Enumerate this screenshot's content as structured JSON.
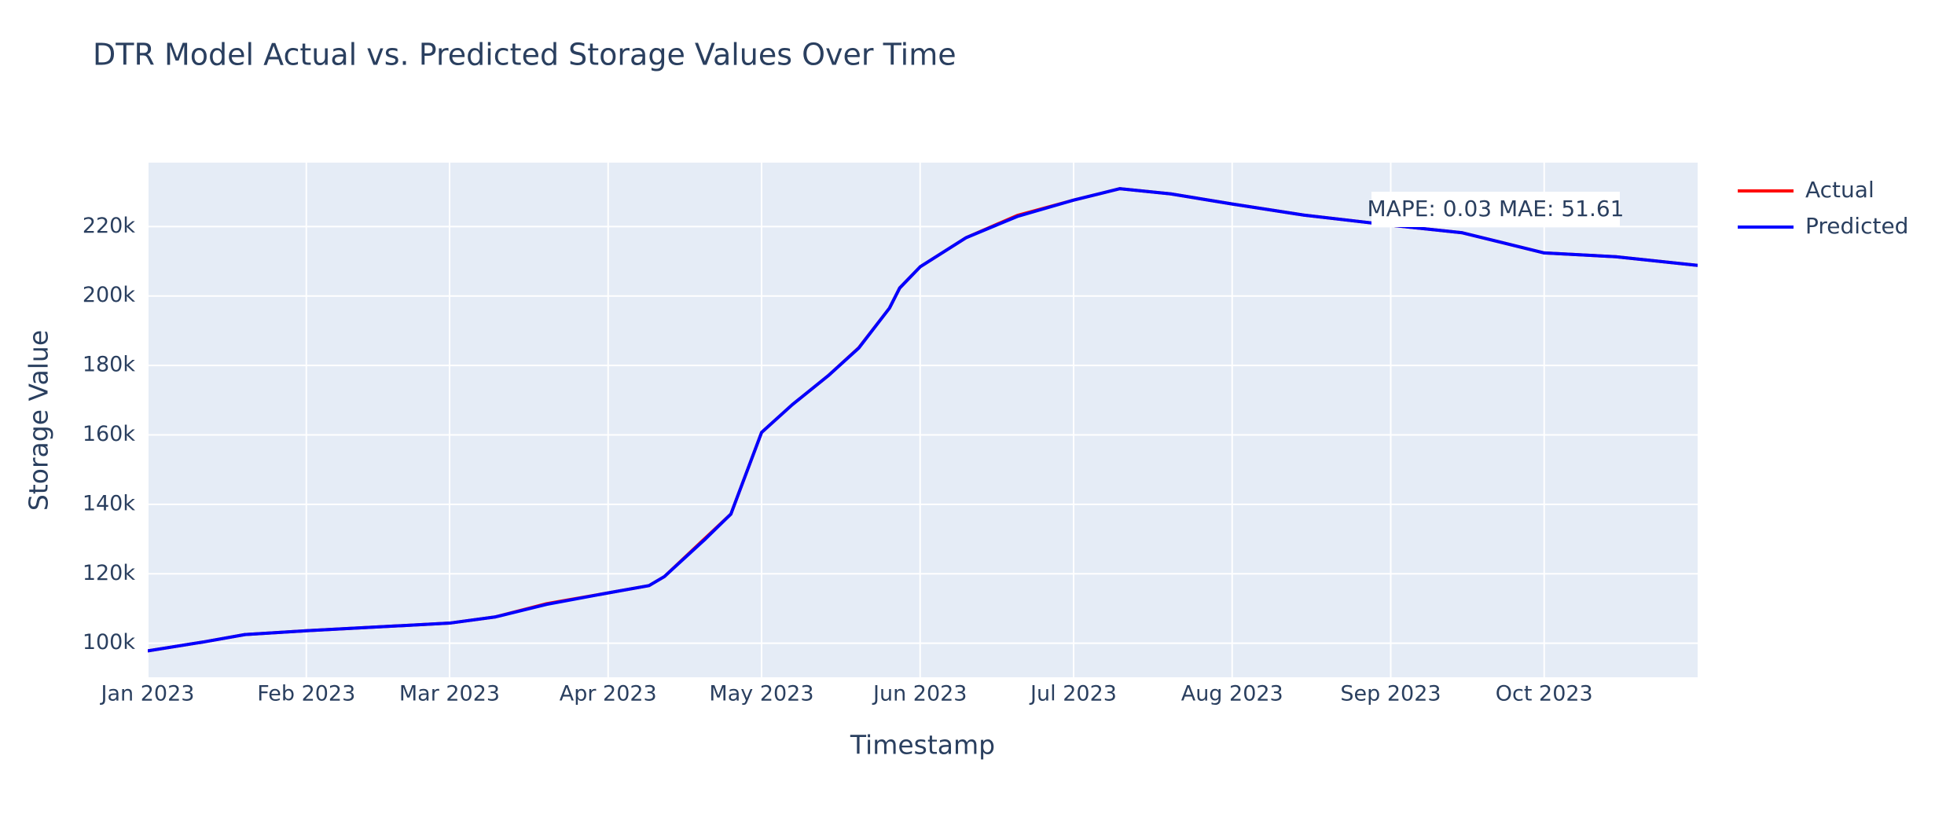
{
  "chart_data": {
    "type": "line",
    "title": "DTR Model Actual vs. Predicted Storage Values Over Time",
    "x_label": "Timestamp",
    "y_label": "Storage Value",
    "annotation": "MAPE: 0.03 MAE: 51.61",
    "x": [
      "2023-01-01",
      "2023-01-12",
      "2023-01-20",
      "2023-02-01",
      "2023-03-01",
      "2023-03-10",
      "2023-03-20",
      "2023-04-01",
      "2023-04-09",
      "2023-04-12",
      "2023-04-20",
      "2023-04-25",
      "2023-05-01",
      "2023-05-07",
      "2023-05-14",
      "2023-05-20",
      "2023-05-26",
      "2023-05-28",
      "2023-06-01",
      "2023-06-10",
      "2023-06-20",
      "2023-07-01",
      "2023-07-10",
      "2023-07-20",
      "2023-08-01",
      "2023-08-15",
      "2023-09-01",
      "2023-09-15",
      "2023-10-01",
      "2023-10-15",
      "2023-10-31"
    ],
    "series": [
      {
        "name": "Actual",
        "color": "#ff0000",
        "values": [
          97800,
          100400,
          102500,
          103600,
          105800,
          107600,
          111400,
          114500,
          116600,
          119200,
          130300,
          137200,
          160700,
          168700,
          177000,
          185100,
          196500,
          202300,
          208400,
          216800,
          223200,
          227600,
          230900,
          229400,
          226500,
          223300,
          220400,
          218200,
          212400,
          211300,
          208800
        ]
      },
      {
        "name": "Predicted",
        "color": "#0000ff",
        "values": [
          97800,
          100400,
          102500,
          103600,
          105800,
          107600,
          111200,
          114500,
          116600,
          119200,
          130000,
          137200,
          160700,
          168700,
          177000,
          185000,
          196500,
          202300,
          208400,
          216800,
          222900,
          227600,
          230900,
          229400,
          226500,
          223300,
          220400,
          218200,
          212400,
          211300,
          208800
        ]
      }
    ],
    "xlim": [
      "2023-01-01",
      "2023-10-31"
    ],
    "xticks": [
      {
        "value": "2023-01-01",
        "label": "Jan 2023"
      },
      {
        "value": "2023-02-01",
        "label": "Feb 2023"
      },
      {
        "value": "2023-03-01",
        "label": "Mar 2023"
      },
      {
        "value": "2023-04-01",
        "label": "Apr 2023"
      },
      {
        "value": "2023-05-01",
        "label": "May 2023"
      },
      {
        "value": "2023-06-01",
        "label": "Jun 2023"
      },
      {
        "value": "2023-07-01",
        "label": "Jul 2023"
      },
      {
        "value": "2023-08-01",
        "label": "Aug 2023"
      },
      {
        "value": "2023-09-01",
        "label": "Sep 2023"
      },
      {
        "value": "2023-10-01",
        "label": "Oct 2023"
      }
    ],
    "ylim": [
      90200,
      238400
    ],
    "yticks": [
      {
        "value": 100000,
        "label": "100k"
      },
      {
        "value": 120000,
        "label": "120k"
      },
      {
        "value": 140000,
        "label": "140k"
      },
      {
        "value": 160000,
        "label": "160k"
      },
      {
        "value": 180000,
        "label": "180k"
      },
      {
        "value": 200000,
        "label": "200k"
      },
      {
        "value": 220000,
        "label": "220k"
      }
    ],
    "grid": true,
    "legend": "outside-right"
  }
}
